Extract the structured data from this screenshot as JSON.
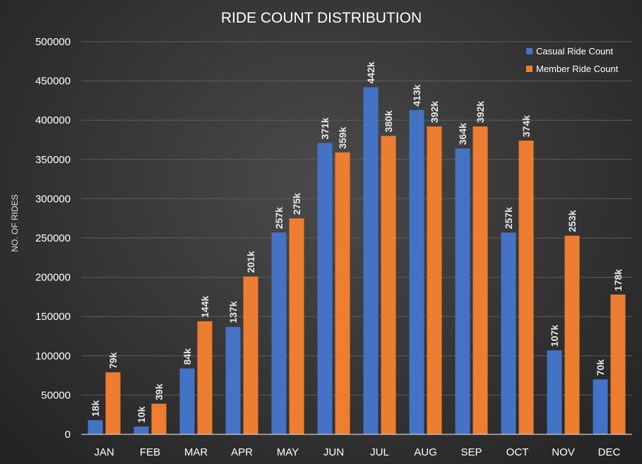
{
  "chart_data": {
    "type": "bar",
    "title": "RIDE COUNT DISTRIBUTION",
    "xlabel": "",
    "ylabel": "NO. OF RIDES",
    "ylim": [
      0,
      500000
    ],
    "yticks": [
      0,
      50000,
      100000,
      150000,
      200000,
      250000,
      300000,
      350000,
      400000,
      450000,
      500000
    ],
    "grid": true,
    "legend_position": "top-right",
    "categories": [
      "JAN",
      "FEB",
      "MAR",
      "APR",
      "MAY",
      "JUN",
      "JUL",
      "AUG",
      "SEP",
      "OCT",
      "NOV",
      "DEC"
    ],
    "series": [
      {
        "name": "Casual Ride Count",
        "color": "#4472c4",
        "values": [
          18000,
          10000,
          84000,
          137000,
          257000,
          371000,
          442000,
          413000,
          364000,
          257000,
          107000,
          70000
        ],
        "labels": [
          "18k",
          "10k",
          "84k",
          "137k",
          "257k",
          "371k",
          "442k",
          "413k",
          "364k",
          "257k",
          "107k",
          "70k"
        ]
      },
      {
        "name": "Member Ride Count",
        "color": "#ed7d31",
        "values": [
          79000,
          39000,
          144000,
          201000,
          275000,
          359000,
          380000,
          392000,
          392000,
          374000,
          253000,
          178000
        ],
        "labels": [
          "79k",
          "39k",
          "144k",
          "201k",
          "275k",
          "359k",
          "380k",
          "392k",
          "392k",
          "374k",
          "253k",
          "178k"
        ]
      }
    ]
  }
}
